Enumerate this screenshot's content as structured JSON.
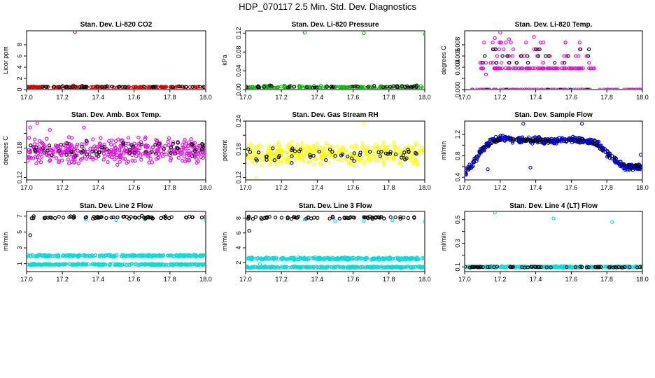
{
  "page": {
    "title": "HDP_070117  2.5 Min. Std. Dev. Diagnostics"
  },
  "chart_data": [
    {
      "type": "scatter",
      "title": "Stan. Dev. Li-820 CO2",
      "ylabel": "Licor ppm",
      "xlim": [
        17.0,
        18.0
      ],
      "ylim": [
        0,
        10.5
      ],
      "xticks": [
        17.0,
        17.2,
        17.4,
        17.6,
        17.8,
        18.0
      ],
      "xtick_labels": [
        "17.0",
        "17.2",
        "17.4",
        "17.6",
        "17.8",
        "18.0"
      ],
      "yticks": [
        0,
        2,
        4,
        6,
        8
      ],
      "ytick_labels": [
        "0",
        "2",
        "4",
        "6",
        "8"
      ],
      "series": [
        {
          "name": "main",
          "color": "#dd0000",
          "pattern": {
            "kind": "band",
            "center": 0.45,
            "spread": 0.12,
            "n": 160,
            "seed": 11
          },
          "extra": [
            {
              "x": 17.27,
              "y": 10.3
            },
            {
              "x": 17.26,
              "y": 0.75
            },
            {
              "x": 17.31,
              "y": 0.7
            }
          ]
        },
        {
          "name": "black",
          "color": "#000000",
          "pattern": {
            "kind": "band",
            "center": 0.5,
            "spread": 0.12,
            "n": 40,
            "seed": 12
          },
          "extra": []
        }
      ]
    },
    {
      "type": "scatter",
      "title": "Stan. Dev. Li-820 Pressure",
      "ylabel": "kPa",
      "xlim": [
        17.0,
        18.0
      ],
      "ylim": [
        0,
        0.125
      ],
      "xticks": [
        17.0,
        17.2,
        17.4,
        17.6,
        17.8,
        18.0
      ],
      "xtick_labels": [
        "17.0",
        "17.2",
        "17.4",
        "17.6",
        "17.8",
        "18.0"
      ],
      "yticks": [
        0,
        0.04,
        0.08,
        0.12
      ],
      "ytick_labels": [
        "0.00",
        "0.04",
        "0.08",
        "0.12"
      ],
      "series": [
        {
          "name": "main",
          "color": "#00bb00",
          "pattern": {
            "kind": "band",
            "center": 0.005,
            "spread": 0.004,
            "n": 170,
            "seed": 21
          },
          "extra": [
            {
              "x": 17.33,
              "y": 0.121
            },
            {
              "x": 17.66,
              "y": 0.12
            },
            {
              "x": 18.0,
              "y": 0.118
            }
          ]
        },
        {
          "name": "black",
          "color": "#000000",
          "pattern": {
            "kind": "band",
            "center": 0.006,
            "spread": 0.003,
            "n": 40,
            "seed": 22
          },
          "extra": []
        }
      ]
    },
    {
      "type": "scatter",
      "title": "Stan. Dev. Li-820 Temp.",
      "ylabel": "degrees C",
      "xlim": [
        17.0,
        18.0
      ],
      "ylim": [
        0,
        0.0105
      ],
      "xticks": [
        17.0,
        17.2,
        17.4,
        17.6,
        17.8,
        18.0
      ],
      "xtick_labels": [
        "17.0",
        "17.2",
        "17.4",
        "17.6",
        "17.8",
        "18.0"
      ],
      "yticks": [
        0,
        0.002,
        0.004,
        0.006,
        0.008
      ],
      "ytick_labels": [
        "0.000",
        "",
        "0.004",
        "0.006",
        "0.008"
      ],
      "series": [
        {
          "name": "zero-row",
          "color": "#ee00ee",
          "pattern": {
            "kind": "flat",
            "y": 0.0,
            "x0": 17.0,
            "x1": 18.0,
            "n": 110,
            "seed": 31
          },
          "extra": []
        },
        {
          "name": "row-a",
          "color": "#ee00ee",
          "pattern": {
            "kind": "flat",
            "y": 0.0038,
            "x0": 17.08,
            "x1": 17.74,
            "n": 90,
            "seed": 32
          },
          "extra": []
        },
        {
          "name": "upper",
          "color": "#ee00ee",
          "pattern": {
            "kind": "levels",
            "levels": [
              0.0048,
              0.006,
              0.0072,
              0.0084
            ],
            "x0": 17.08,
            "x1": 17.72,
            "n": 45,
            "seed": 33
          },
          "extra": [
            {
              "x": 17.2,
              "y": 0.0102
            },
            {
              "x": 17.17,
              "y": 0.0092
            },
            {
              "x": 17.25,
              "y": 0.009
            },
            {
              "x": 17.39,
              "y": 0.0094
            },
            {
              "x": 17.12,
              "y": 0.0027
            },
            {
              "x": 17.7,
              "y": 0.0048
            }
          ]
        },
        {
          "name": "black",
          "color": "#000000",
          "pattern": {
            "kind": "levels",
            "levels": [
              0.0,
              0.0048,
              0.006,
              0.0072
            ],
            "x0": 17.1,
            "x1": 17.7,
            "n": 30,
            "seed": 34
          },
          "extra": []
        }
      ]
    },
    {
      "type": "scatter",
      "title": "Stan. Dev. Amb. Box Temp.",
      "ylabel": "degrees C",
      "xlim": [
        17.0,
        18.0
      ],
      "ylim": [
        0.115,
        0.235
      ],
      "xticks": [
        17.0,
        17.2,
        17.4,
        17.6,
        17.8,
        18.0
      ],
      "xtick_labels": [
        "17.0",
        "17.2",
        "17.4",
        "17.6",
        "17.8",
        "18.0"
      ],
      "yticks": [
        0.12,
        0.15,
        0.18,
        0.21
      ],
      "ytick_labels": [
        "0.12",
        "",
        "0.18",
        ""
      ],
      "series": [
        {
          "name": "main",
          "color": "#ee00ee",
          "pattern": {
            "kind": "band",
            "center": 0.174,
            "spread": 0.03,
            "n": 380,
            "seed": 41
          },
          "extra": [
            {
              "x": 17.06,
              "y": 0.231
            },
            {
              "x": 17.02,
              "y": 0.222
            },
            {
              "x": 17.13,
              "y": 0.217
            },
            {
              "x": 17.32,
              "y": 0.222
            }
          ]
        },
        {
          "name": "black",
          "color": "#000000",
          "pattern": {
            "kind": "band",
            "center": 0.178,
            "spread": 0.02,
            "n": 60,
            "seed": 42
          },
          "extra": []
        }
      ]
    },
    {
      "type": "scatter",
      "title": "Stan. Dev. Gas Stream RH",
      "ylabel": "percent",
      "xlim": [
        17.0,
        18.0
      ],
      "ylim": [
        0.115,
        0.24
      ],
      "xticks": [
        17.0,
        17.2,
        17.4,
        17.6,
        17.8,
        18.0
      ],
      "xtick_labels": [
        "17.0",
        "17.2",
        "17.4",
        "17.6",
        "17.8",
        "18.0"
      ],
      "yticks": [
        0.12,
        0.15,
        0.18,
        0.21,
        0.24
      ],
      "ytick_labels": [
        "0.12",
        "",
        "0.18",
        "",
        "0.24"
      ],
      "series": [
        {
          "name": "main",
          "color": "#ffff00",
          "pattern": {
            "kind": "band",
            "center": 0.17,
            "spread": 0.027,
            "n": 380,
            "seed": 51
          },
          "extra": [
            {
              "x": 17.66,
              "y": 0.236
            },
            {
              "x": 17.06,
              "y": 0.118
            }
          ]
        },
        {
          "name": "black",
          "color": "#000000",
          "pattern": {
            "kind": "band",
            "center": 0.17,
            "spread": 0.02,
            "n": 55,
            "seed": 52
          },
          "extra": []
        }
      ]
    },
    {
      "type": "scatter",
      "title": "Stan. Dev. Sample Flow",
      "ylabel": "ml/min",
      "xlim": [
        17.0,
        18.0
      ],
      "ylim": [
        0.35,
        1.45
      ],
      "xticks": [
        17.0,
        17.2,
        17.4,
        17.6,
        17.8,
        18.0
      ],
      "xtick_labels": [
        "17.0",
        "17.2",
        "17.4",
        "17.6",
        "17.8",
        "18.0"
      ],
      "yticks": [
        0.4,
        0.6,
        0.8,
        1.0,
        1.2
      ],
      "ytick_labels": [
        "0.4",
        "",
        "0.8",
        "",
        "1.2"
      ],
      "series": [
        {
          "name": "main",
          "color": "#0000dd",
          "pattern": {
            "kind": "curve",
            "points": [
              [
                17.0,
                0.48
              ],
              [
                17.05,
                0.68
              ],
              [
                17.1,
                0.92
              ],
              [
                17.15,
                1.08
              ],
              [
                17.2,
                1.12
              ],
              [
                17.3,
                1.1
              ],
              [
                17.4,
                1.09
              ],
              [
                17.5,
                1.08
              ],
              [
                17.6,
                1.1
              ],
              [
                17.7,
                1.08
              ],
              [
                17.75,
                1.02
              ],
              [
                17.8,
                0.85
              ],
              [
                17.85,
                0.7
              ],
              [
                17.9,
                0.6
              ],
              [
                17.95,
                0.58
              ],
              [
                18.0,
                0.6
              ]
            ],
            "spread": 0.07,
            "n": 420,
            "seed": 61
          },
          "extra": [
            {
              "x": 17.33,
              "y": 1.4
            },
            {
              "x": 17.66,
              "y": 1.4
            },
            {
              "x": 17.13,
              "y": 0.55
            },
            {
              "x": 17.37,
              "y": 0.58
            },
            {
              "x": 17.99,
              "y": 0.82
            }
          ]
        },
        {
          "name": "black",
          "color": "#000000",
          "pattern": {
            "kind": "curve",
            "points": [
              [
                17.0,
                0.5
              ],
              [
                17.1,
                0.95
              ],
              [
                17.2,
                1.12
              ],
              [
                17.5,
                1.08
              ],
              [
                17.7,
                1.1
              ],
              [
                17.8,
                0.85
              ],
              [
                17.9,
                0.62
              ],
              [
                18.0,
                0.6
              ]
            ],
            "spread": 0.03,
            "n": 70,
            "seed": 62
          },
          "extra": []
        }
      ]
    },
    {
      "type": "scatter",
      "title": "Stan. Dev. Line 2 Flow",
      "ylabel": "ml/min",
      "xlim": [
        17.0,
        18.0
      ],
      "ylim": [
        0.0,
        7.6
      ],
      "xticks": [
        17.0,
        17.2,
        17.4,
        17.6,
        17.8,
        18.0
      ],
      "xtick_labels": [
        "17.0",
        "17.2",
        "17.4",
        "17.6",
        "17.8",
        "18.0"
      ],
      "yticks": [
        1,
        3,
        5,
        7
      ],
      "ytick_labels": [
        "1",
        "3",
        "5",
        "7"
      ],
      "series": [
        {
          "name": "band-high",
          "color": "#00dddd",
          "pattern": {
            "kind": "band",
            "center": 2.0,
            "spread": 0.15,
            "n": 260,
            "seed": 71
          },
          "extra": []
        },
        {
          "name": "band-low",
          "color": "#00dddd",
          "pattern": {
            "kind": "band",
            "center": 0.9,
            "spread": 0.12,
            "n": 260,
            "seed": 72
          },
          "extra": [
            {
              "x": 17.33,
              "y": 6.6
            },
            {
              "x": 17.5,
              "y": 6.5
            },
            {
              "x": 17.66,
              "y": 6.6
            },
            {
              "x": 18.0,
              "y": 6.5
            }
          ]
        },
        {
          "name": "black",
          "color": "#000000",
          "pattern": {
            "kind": "band",
            "center": 6.85,
            "spread": 0.2,
            "n": 65,
            "seed": 73
          },
          "extra": [
            {
              "x": 17.02,
              "y": 4.6
            }
          ]
        }
      ]
    },
    {
      "type": "scatter",
      "title": "Stan. Dev. Line 3 Flow",
      "ylabel": "ml/min",
      "xlim": [
        17.0,
        18.0
      ],
      "ylim": [
        0.8,
        8.9
      ],
      "xticks": [
        17.0,
        17.2,
        17.4,
        17.6,
        17.8,
        18.0
      ],
      "xtick_labels": [
        "17.0",
        "17.2",
        "17.4",
        "17.6",
        "17.8",
        "18.0"
      ],
      "yticks": [
        2,
        4,
        6,
        8
      ],
      "ytick_labels": [
        "2",
        "4",
        "6",
        "8"
      ],
      "series": [
        {
          "name": "band-high",
          "color": "#00dddd",
          "pattern": {
            "kind": "band",
            "center": 2.55,
            "spread": 0.2,
            "n": 260,
            "seed": 81
          },
          "extra": []
        },
        {
          "name": "band-low",
          "color": "#00dddd",
          "pattern": {
            "kind": "band",
            "center": 1.4,
            "spread": 0.13,
            "n": 260,
            "seed": 82
          },
          "extra": [
            {
              "x": 17.33,
              "y": 7.8
            },
            {
              "x": 17.5,
              "y": 7.6
            },
            {
              "x": 17.66,
              "y": 7.6
            },
            {
              "x": 17.82,
              "y": 7.7
            },
            {
              "x": 18.0,
              "y": 7.5
            },
            {
              "x": 17.08,
              "y": 1.8
            }
          ]
        },
        {
          "name": "black",
          "color": "#000000",
          "pattern": {
            "kind": "band",
            "center": 8.05,
            "spread": 0.2,
            "n": 65,
            "seed": 83
          },
          "extra": [
            {
              "x": 17.02,
              "y": 6.3
            }
          ]
        }
      ]
    },
    {
      "type": "scatter",
      "title": "Stan. Dev. Line 4 (LT) Flow",
      "ylabel": "ml/min",
      "xlim": [
        17.0,
        18.0
      ],
      "ylim": [
        0.06,
        0.57
      ],
      "xticks": [
        17.0,
        17.2,
        17.4,
        17.6,
        17.8,
        18.0
      ],
      "xtick_labels": [
        "17.0",
        "17.2",
        "17.4",
        "17.6",
        "17.8",
        "18.0"
      ],
      "yticks": [
        0.1,
        0.2,
        0.3,
        0.4,
        0.5
      ],
      "ytick_labels": [
        "0.1",
        "",
        "0.3",
        "",
        "0.5"
      ],
      "series": [
        {
          "name": "main",
          "color": "#00dddd",
          "pattern": {
            "kind": "band",
            "center": 0.1,
            "spread": 0.008,
            "n": 320,
            "seed": 91
          },
          "extra": [
            {
              "x": 17.17,
              "y": 0.56
            },
            {
              "x": 17.5,
              "y": 0.51
            },
            {
              "x": 17.83,
              "y": 0.48
            }
          ]
        },
        {
          "name": "black",
          "color": "#000000",
          "pattern": {
            "kind": "band",
            "center": 0.098,
            "spread": 0.005,
            "n": 60,
            "seed": 92
          },
          "extra": []
        }
      ]
    }
  ]
}
